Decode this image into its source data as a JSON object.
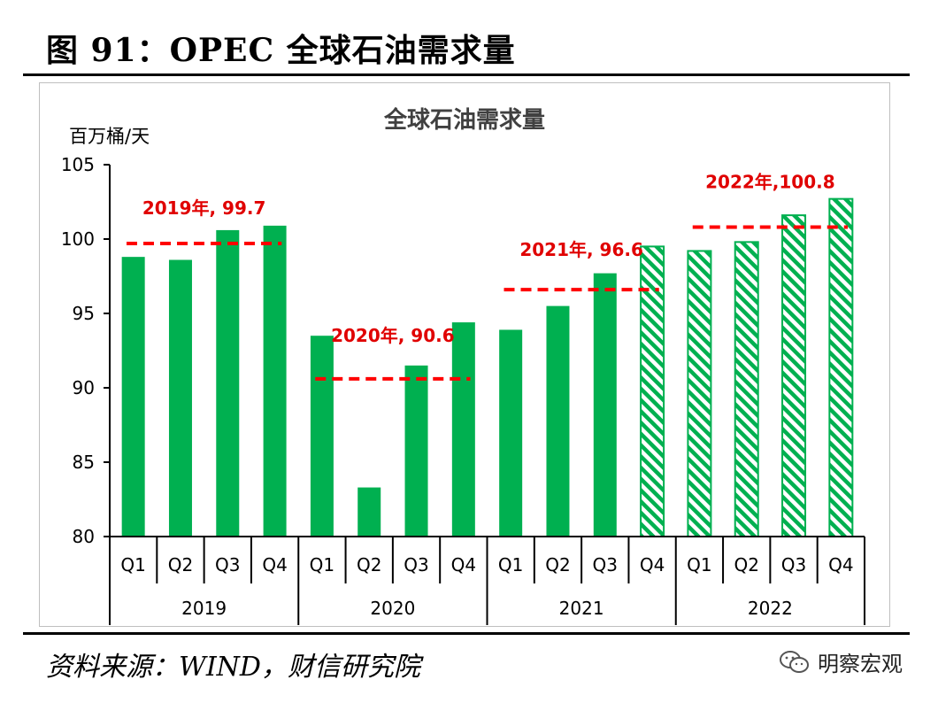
{
  "figure": {
    "title": "图 91：OPEC 全球石油需求量",
    "source": "资料来源：WIND，财信研究院",
    "watermark": "明察宏观"
  },
  "colors": {
    "bar": "#00b050",
    "avg_line": "#ff0000",
    "avg_label": "#e00000"
  },
  "chart_data": {
    "type": "bar",
    "title": "全球石油需求量",
    "ylabel": "百万桶/天",
    "xlabel": "",
    "ylim": [
      80,
      105
    ],
    "yticks": [
      80,
      85,
      90,
      95,
      100,
      105
    ],
    "grid": false,
    "legend": "none",
    "groups": [
      "2019",
      "2020",
      "2021",
      "2022"
    ],
    "quarters": [
      "Q1",
      "Q2",
      "Q3",
      "Q4"
    ],
    "bars": [
      {
        "year": "2019",
        "quarter": "Q1",
        "value": 98.8,
        "forecast": false
      },
      {
        "year": "2019",
        "quarter": "Q2",
        "value": 98.6,
        "forecast": false
      },
      {
        "year": "2019",
        "quarter": "Q3",
        "value": 100.6,
        "forecast": false
      },
      {
        "year": "2019",
        "quarter": "Q4",
        "value": 100.9,
        "forecast": false
      },
      {
        "year": "2020",
        "quarter": "Q1",
        "value": 93.5,
        "forecast": false
      },
      {
        "year": "2020",
        "quarter": "Q2",
        "value": 83.3,
        "forecast": false
      },
      {
        "year": "2020",
        "quarter": "Q3",
        "value": 91.5,
        "forecast": false
      },
      {
        "year": "2020",
        "quarter": "Q4",
        "value": 94.4,
        "forecast": false
      },
      {
        "year": "2021",
        "quarter": "Q1",
        "value": 93.9,
        "forecast": false
      },
      {
        "year": "2021",
        "quarter": "Q2",
        "value": 95.5,
        "forecast": false
      },
      {
        "year": "2021",
        "quarter": "Q3",
        "value": 97.7,
        "forecast": false
      },
      {
        "year": "2021",
        "quarter": "Q4",
        "value": 99.5,
        "forecast": true
      },
      {
        "year": "2022",
        "quarter": "Q1",
        "value": 99.2,
        "forecast": true
      },
      {
        "year": "2022",
        "quarter": "Q2",
        "value": 99.8,
        "forecast": true
      },
      {
        "year": "2022",
        "quarter": "Q3",
        "value": 101.6,
        "forecast": true
      },
      {
        "year": "2022",
        "quarter": "Q4",
        "value": 102.7,
        "forecast": true
      }
    ],
    "annual_averages": [
      {
        "year": "2019",
        "value": 99.7,
        "label": "2019年, 99.7"
      },
      {
        "year": "2020",
        "value": 90.6,
        "label": "2020年, 90.6"
      },
      {
        "year": "2021",
        "value": 96.6,
        "label": "2021年, 96.6"
      },
      {
        "year": "2022",
        "value": 100.8,
        "label": "2022年,100.8"
      }
    ]
  }
}
